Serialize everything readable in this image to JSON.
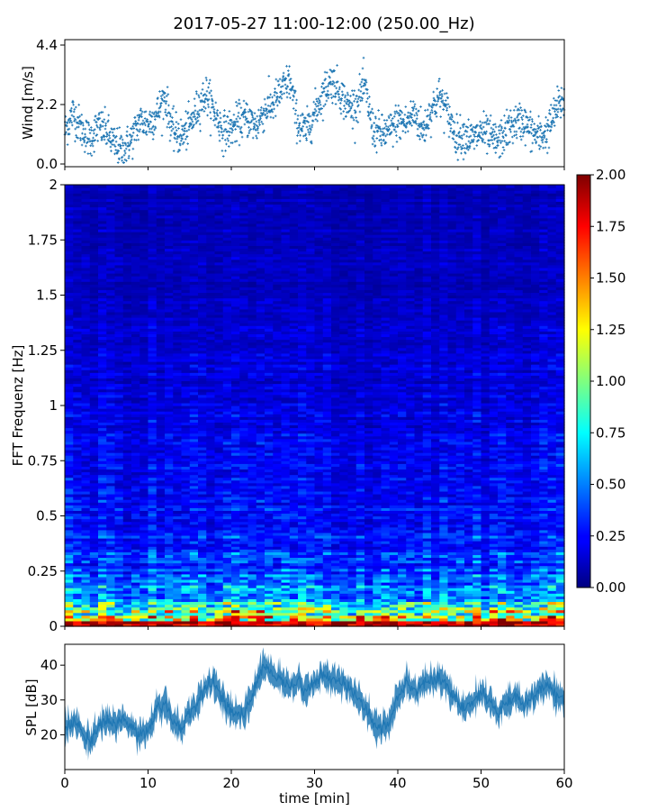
{
  "figure": {
    "title": "2017-05-27 11:00-12:00 (250.00_Hz)"
  },
  "chart_data": [
    {
      "type": "scatter",
      "panel": "wind",
      "ylabel": "Wind [m/s]",
      "xlim": [
        0,
        60
      ],
      "ylim": [
        -0.1,
        4.6
      ],
      "yticks": [
        0.0,
        2.2,
        4.4
      ],
      "ytick_labels": [
        "0.0",
        "2.2",
        "4.4"
      ],
      "xticks": [
        0,
        10,
        20,
        30,
        40,
        50,
        60
      ],
      "marker": "+",
      "color": "#1f77b4",
      "x": [
        0,
        1,
        2,
        3,
        4,
        5,
        6,
        7,
        8,
        9,
        10,
        11,
        12,
        13,
        14,
        15,
        16,
        17,
        18,
        19,
        20,
        21,
        22,
        23,
        24,
        25,
        26,
        27,
        28,
        29,
        30,
        31,
        32,
        33,
        34,
        35,
        36,
        37,
        38,
        39,
        40,
        41,
        42,
        43,
        44,
        45,
        46,
        47,
        48,
        49,
        50,
        51,
        52,
        53,
        54,
        55,
        56,
        57,
        58,
        59,
        60
      ],
      "y": [
        1.2,
        1.9,
        1.3,
        0.9,
        1.4,
        1.2,
        0.7,
        0.5,
        0.9,
        1.6,
        1.5,
        1.8,
        2.5,
        1.2,
        1.0,
        1.4,
        2.1,
        2.6,
        1.9,
        1.2,
        1.3,
        1.6,
        1.7,
        1.4,
        2.0,
        2.2,
        2.7,
        3.1,
        1.5,
        1.2,
        1.9,
        2.6,
        3.1,
        2.7,
        2.1,
        2.2,
        2.9,
        1.3,
        1.1,
        1.2,
        1.6,
        1.5,
        1.9,
        1.2,
        2.0,
        2.5,
        1.9,
        1.0,
        1.1,
        0.9,
        1.2,
        1.0,
        0.8,
        1.2,
        1.5,
        1.6,
        1.2,
        1.0,
        1.2,
        2.0,
        2.4
      ]
    },
    {
      "type": "heatmap",
      "panel": "spectrogram",
      "ylabel": "FFT Frequenz [Hz]",
      "xlim": [
        0,
        60
      ],
      "ylim": [
        0,
        2
      ],
      "yticks": [
        0,
        0.25,
        0.5,
        0.75,
        1,
        1.25,
        1.5,
        1.75,
        2
      ],
      "ytick_labels": [
        "0",
        "0.25",
        "0.5",
        "0.75",
        "1",
        "1.25",
        "1.5",
        "1.75",
        "2"
      ],
      "colormap": "jet",
      "colorbar": {
        "range": [
          0.0,
          2.0
        ],
        "ticks": [
          "0.00",
          "0.25",
          "0.50",
          "0.75",
          "1.00",
          "1.25",
          "1.50",
          "1.75",
          "2.00"
        ]
      },
      "frequency_profile_hz": [
        0.0,
        0.02,
        0.05,
        0.1,
        0.15,
        0.25,
        0.5,
        1.0,
        1.5,
        2.0
      ],
      "typical_amplitude": [
        2.0,
        1.6,
        1.0,
        0.7,
        0.5,
        0.35,
        0.25,
        0.18,
        0.12,
        0.1
      ]
    },
    {
      "type": "area",
      "panel": "spl",
      "ylabel": "SPL [dB]",
      "xlabel": "time [min]",
      "xlim": [
        0,
        60
      ],
      "ylim": [
        10,
        46
      ],
      "yticks": [
        20,
        30,
        40
      ],
      "ytick_labels": [
        "20",
        "30",
        "40"
      ],
      "xticks": [
        0,
        10,
        20,
        30,
        40,
        50,
        60
      ],
      "xtick_labels": [
        "0",
        "10",
        "20",
        "30",
        "40",
        "50",
        "60"
      ],
      "color": "#1f77b4",
      "x": [
        0,
        1,
        2,
        3,
        4,
        5,
        6,
        7,
        8,
        9,
        10,
        11,
        12,
        13,
        14,
        15,
        16,
        17,
        18,
        19,
        20,
        21,
        22,
        23,
        24,
        25,
        26,
        27,
        28,
        29,
        30,
        31,
        32,
        33,
        34,
        35,
        36,
        37,
        38,
        39,
        40,
        41,
        42,
        43,
        44,
        45,
        46,
        47,
        48,
        49,
        50,
        51,
        52,
        53,
        54,
        55,
        56,
        57,
        58,
        59,
        60
      ],
      "y": [
        22,
        24,
        21,
        18,
        22,
        24,
        23,
        25,
        22,
        19,
        21,
        27,
        29,
        24,
        22,
        26,
        30,
        34,
        35,
        30,
        27,
        25,
        28,
        35,
        40,
        37,
        36,
        34,
        35,
        33,
        35,
        37,
        36,
        36,
        34,
        31,
        28,
        24,
        21,
        24,
        31,
        35,
        33,
        34,
        36,
        36,
        34,
        30,
        27,
        30,
        32,
        30,
        26,
        29,
        31,
        29,
        30,
        33,
        35,
        31,
        29
      ]
    }
  ]
}
